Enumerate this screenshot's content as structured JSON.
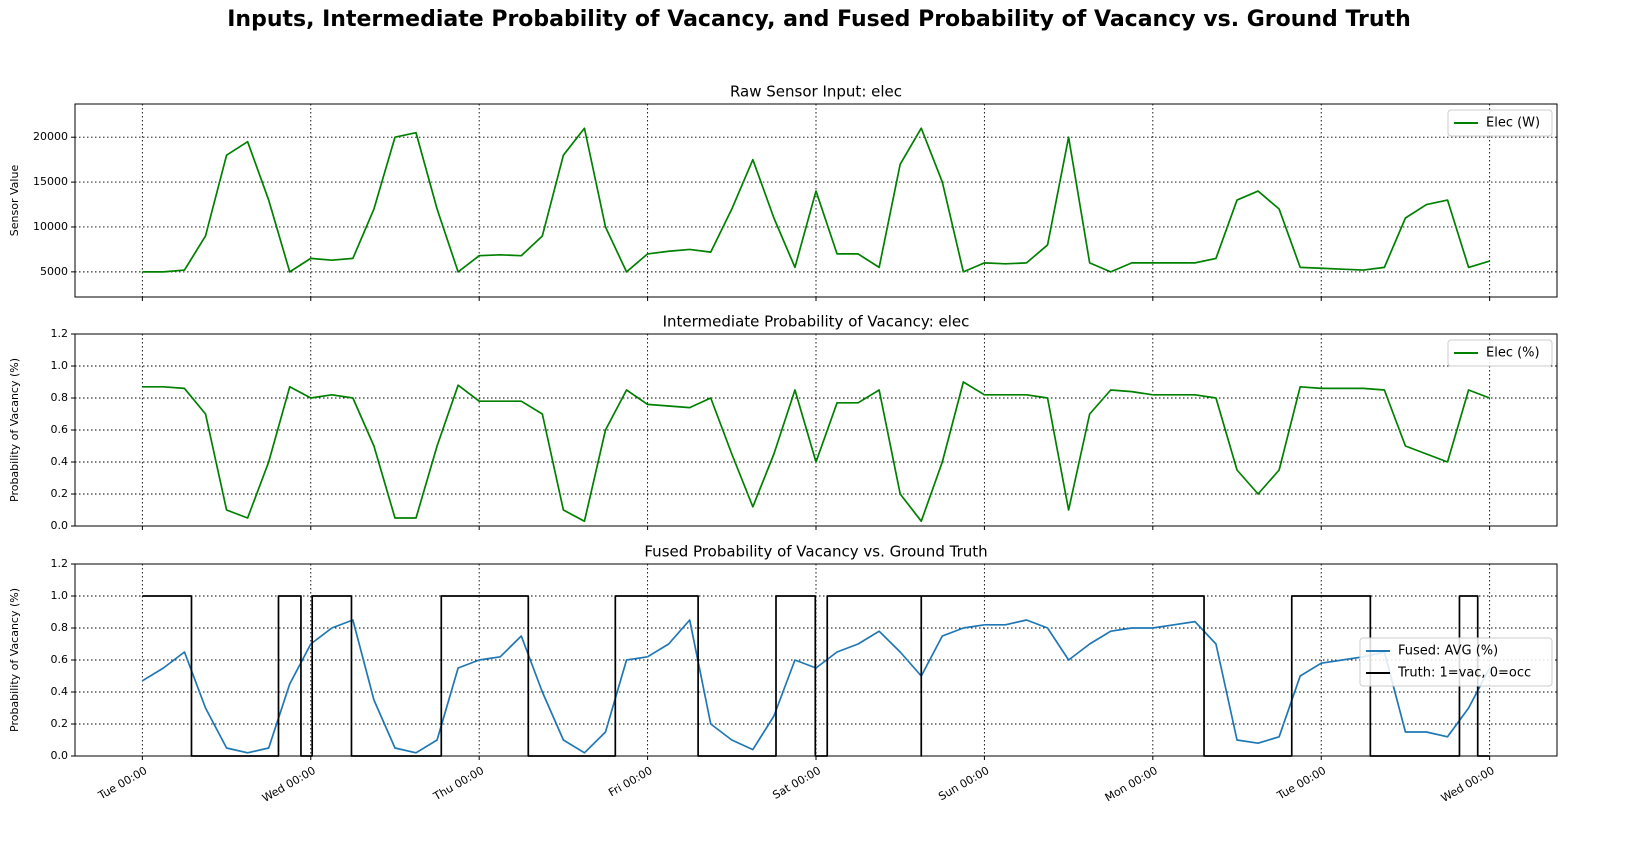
{
  "title": "Inputs, Intermediate Probability of Vacancy, and Fused Probability of Vacancy vs. Ground Truth",
  "chart_data": [
    {
      "type": "line",
      "title": "Raw Sensor Input: elec",
      "y_label": "Sensor Value",
      "grid": true,
      "legend": "upper right",
      "x": [
        0,
        3,
        6,
        9,
        12,
        15,
        18,
        21,
        24,
        27,
        30,
        33,
        36,
        39,
        42,
        45,
        48,
        51,
        54,
        57,
        60,
        63,
        66,
        69,
        72,
        75,
        78,
        81,
        84,
        87,
        90,
        93,
        96,
        99,
        102,
        105,
        108,
        111,
        114,
        117,
        120,
        123,
        126,
        129,
        132,
        135,
        138,
        141,
        144,
        147,
        150,
        153,
        156,
        159,
        162,
        165,
        168,
        171,
        174,
        177,
        180,
        183,
        186,
        189,
        192
      ],
      "xlim": [
        -9.6,
        201.6
      ],
      "xticks": [
        0,
        24,
        48,
        72,
        96,
        120,
        144,
        168,
        192
      ],
      "ylim": [
        2200,
        23700
      ],
      "yticks": [
        5000,
        10000,
        15000,
        20000
      ],
      "series": [
        {
          "name": "Elec (W)",
          "color": "#008000",
          "values": [
            5000,
            5000,
            5200,
            9000,
            18000,
            19500,
            13000,
            5000,
            6500,
            6300,
            6500,
            12000,
            20000,
            20500,
            12000,
            5000,
            6800,
            6900,
            6800,
            9000,
            18000,
            21000,
            10000,
            5000,
            7000,
            7300,
            7500,
            7200,
            12000,
            17500,
            11000,
            5500,
            14000,
            7000,
            7000,
            5500,
            17000,
            21000,
            15000,
            5000,
            6000,
            5900,
            6000,
            8000,
            20000,
            6000,
            5000,
            6000,
            6000,
            6000,
            6000,
            6500,
            13000,
            14000,
            12000,
            5500,
            5400,
            5300,
            5200,
            5500,
            11000,
            12500,
            13000,
            5500,
            6200
          ]
        }
      ]
    },
    {
      "type": "line",
      "title": "Intermediate Probability of Vacancy: elec",
      "y_label": "Probability of Vacancy (%)",
      "grid": true,
      "legend": "upper right",
      "x": [
        0,
        3,
        6,
        9,
        12,
        15,
        18,
        21,
        24,
        27,
        30,
        33,
        36,
        39,
        42,
        45,
        48,
        51,
        54,
        57,
        60,
        63,
        66,
        69,
        72,
        75,
        78,
        81,
        84,
        87,
        90,
        93,
        96,
        99,
        102,
        105,
        108,
        111,
        114,
        117,
        120,
        123,
        126,
        129,
        132,
        135,
        138,
        141,
        144,
        147,
        150,
        153,
        156,
        159,
        162,
        165,
        168,
        171,
        174,
        177,
        180,
        183,
        186,
        189,
        192
      ],
      "xlim": [
        -9.6,
        201.6
      ],
      "xticks": [
        0,
        24,
        48,
        72,
        96,
        120,
        144,
        168,
        192
      ],
      "ylim": [
        0,
        1.2
      ],
      "yticks": [
        {
          "value": 0,
          "label": "0.0"
        },
        0.2,
        0.4,
        0.6,
        0.8,
        {
          "value": 1,
          "label": "1.0"
        },
        1.2
      ],
      "series": [
        {
          "name": "Elec (%)",
          "color": "#008000",
          "values": [
            0.87,
            0.87,
            0.86,
            0.7,
            0.1,
            0.05,
            0.4,
            0.87,
            0.8,
            0.82,
            0.8,
            0.5,
            0.05,
            0.05,
            0.5,
            0.88,
            0.78,
            0.78,
            0.78,
            0.7,
            0.1,
            0.03,
            0.6,
            0.85,
            0.76,
            0.75,
            0.74,
            0.8,
            0.45,
            0.12,
            0.45,
            0.85,
            0.4,
            0.77,
            0.77,
            0.85,
            0.2,
            0.03,
            0.4,
            0.9,
            0.82,
            0.82,
            0.82,
            0.8,
            0.1,
            0.7,
            0.85,
            0.84,
            0.82,
            0.82,
            0.82,
            0.8,
            0.35,
            0.2,
            0.35,
            0.87,
            0.86,
            0.86,
            0.86,
            0.85,
            0.5,
            0.45,
            0.4,
            0.85,
            0.8
          ]
        }
      ]
    },
    {
      "type": "line",
      "title": "Fused Probability of Vacancy vs. Ground Truth",
      "y_label": "Probability of Vacancy (%)",
      "grid": true,
      "legend": "center right",
      "x": [
        0,
        3,
        6,
        9,
        12,
        15,
        18,
        21,
        24,
        27,
        30,
        33,
        36,
        39,
        42,
        45,
        48,
        51,
        54,
        57,
        60,
        63,
        66,
        69,
        72,
        75,
        78,
        81,
        84,
        87,
        90,
        93,
        96,
        99,
        102,
        105,
        108,
        111,
        114,
        117,
        120,
        123,
        126,
        129,
        132,
        135,
        138,
        141,
        144,
        147,
        150,
        153,
        156,
        159,
        162,
        165,
        168,
        171,
        174,
        177,
        180,
        183,
        186,
        189,
        192
      ],
      "xlim": [
        -9.6,
        201.6
      ],
      "xticks": [
        {
          "value": 0,
          "label": "Tue 00:00"
        },
        {
          "value": 24,
          "label": "Wed 00:00"
        },
        {
          "value": 48,
          "label": "Thu 00:00"
        },
        {
          "value": 72,
          "label": "Fri 00:00"
        },
        {
          "value": 96,
          "label": "Sat 00:00"
        },
        {
          "value": 120,
          "label": "Sun 00:00"
        },
        {
          "value": 144,
          "label": "Mon 00:00"
        },
        {
          "value": 168,
          "label": "Tue 00:00"
        },
        {
          "value": 192,
          "label": "Wed 00:00"
        }
      ],
      "ylim": [
        0,
        1.2
      ],
      "yticks": [
        {
          "value": 0,
          "label": "0.0"
        },
        0.2,
        0.4,
        0.6,
        0.8,
        {
          "value": 1,
          "label": "1.0"
        },
        1.2
      ],
      "series": [
        {
          "name": "Fused: AVG (%)",
          "color": "#1f77b4",
          "values": [
            0.47,
            0.55,
            0.65,
            0.3,
            0.05,
            0.02,
            0.05,
            0.45,
            0.7,
            0.8,
            0.85,
            0.35,
            0.05,
            0.02,
            0.1,
            0.55,
            0.6,
            0.62,
            0.75,
            0.4,
            0.1,
            0.02,
            0.15,
            0.6,
            0.62,
            0.7,
            0.85,
            0.2,
            0.1,
            0.04,
            0.25,
            0.6,
            0.55,
            0.65,
            0.7,
            0.78,
            0.65,
            0.5,
            0.75,
            0.8,
            0.82,
            0.82,
            0.85,
            0.8,
            0.6,
            0.7,
            0.78,
            0.8,
            0.8,
            0.82,
            0.84,
            0.7,
            0.1,
            0.08,
            0.12,
            0.5,
            0.58,
            0.6,
            0.62,
            0.65,
            0.15,
            0.15,
            0.12,
            0.3,
            0.55
          ]
        },
        {
          "name": "Truth: 1=vac, 0=occ",
          "color": "#000000",
          "x": [
            0,
            7,
            7,
            19.4,
            19.4,
            22.6,
            22.6,
            24.2,
            24.2,
            29.8,
            29.8,
            42.6,
            42.6,
            55,
            55,
            67.4,
            67.4,
            79.2,
            79.2,
            90.3,
            90.3,
            95.9,
            95.9,
            97.6,
            97.6,
            111,
            111,
            111,
            151.3,
            151.3,
            163.8,
            163.8,
            175,
            175,
            187.7,
            187.7,
            190.3,
            190.3,
            192
          ],
          "values": [
            1,
            1,
            0,
            0,
            1,
            1,
            0,
            0,
            1,
            1,
            0,
            0,
            1,
            1,
            0,
            0,
            1,
            1,
            0,
            0,
            1,
            1,
            0,
            0,
            1,
            1,
            0,
            1,
            1,
            0,
            0,
            1,
            1,
            0,
            0,
            1,
            1,
            0,
            0
          ]
        }
      ]
    }
  ]
}
